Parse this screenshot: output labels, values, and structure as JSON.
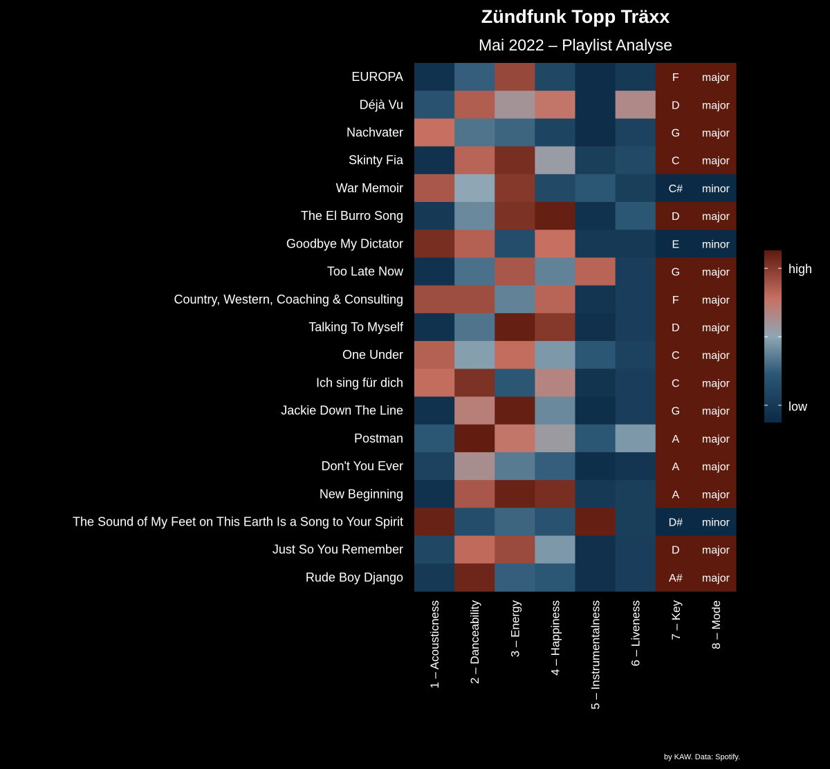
{
  "chart_data": {
    "type": "heatmap",
    "title": "Zündfunk Topp Träxx",
    "subtitle": "Mai 2022 – Playlist Analyse",
    "caption": "by KAW. Data: Spotify.",
    "columns": [
      "1 – Acousticness",
      "2 – Danceability",
      "3 – Energy",
      "4 – Happiness",
      "5 – Instrumentalness",
      "6 – Liveness",
      "7 – Key",
      "8 – Mode"
    ],
    "rows": [
      "EUROPA",
      "Déjà Vu",
      "Nachvater",
      "Skinty Fia",
      "War Memoir",
      "The El Burro Song",
      "Goodbye My Dictator",
      "Too Late Now",
      "Country, Western, Coaching & Consulting",
      "Talking To Myself",
      "One Under",
      "Ich sing für dich",
      "Jackie Down The Line",
      "Postman",
      "Don't You Ever",
      "New Beginning",
      "The Sound of My Feet on This Earth Is a Song to Your Spirit",
      "Just So You Remember",
      "Rude Boy Django"
    ],
    "scale": {
      "min": 0,
      "max": 1,
      "low_label": "low",
      "high_label": "high"
    },
    "values": [
      [
        0.05,
        0.3,
        0.85,
        0.18,
        0.02,
        0.1,
        1.0,
        1.0
      ],
      [
        0.25,
        0.78,
        0.58,
        0.7,
        0.02,
        0.62,
        1.0,
        1.0
      ],
      [
        0.72,
        0.36,
        0.32,
        0.16,
        0.02,
        0.15,
        1.0,
        1.0
      ],
      [
        0.05,
        0.76,
        0.93,
        0.54,
        0.13,
        0.2,
        1.0,
        1.0
      ],
      [
        0.8,
        0.5,
        0.9,
        0.2,
        0.28,
        0.13,
        0.0,
        0.0
      ],
      [
        0.1,
        0.42,
        0.92,
        0.98,
        0.05,
        0.28,
        1.0,
        1.0
      ],
      [
        0.93,
        0.77,
        0.22,
        0.72,
        0.1,
        0.1,
        0.0,
        0.0
      ],
      [
        0.05,
        0.35,
        0.8,
        0.4,
        0.76,
        0.12,
        1.0,
        1.0
      ],
      [
        0.83,
        0.83,
        0.4,
        0.76,
        0.07,
        0.12,
        1.0,
        1.0
      ],
      [
        0.05,
        0.36,
        0.98,
        0.9,
        0.04,
        0.12,
        1.0,
        1.0
      ],
      [
        0.77,
        0.48,
        0.73,
        0.46,
        0.28,
        0.15,
        1.0,
        1.0
      ],
      [
        0.73,
        0.92,
        0.28,
        0.64,
        0.06,
        0.12,
        1.0,
        1.0
      ],
      [
        0.05,
        0.66,
        0.98,
        0.42,
        0.03,
        0.12,
        1.0,
        1.0
      ],
      [
        0.28,
        0.99,
        0.7,
        0.55,
        0.28,
        0.46,
        1.0,
        1.0
      ],
      [
        0.15,
        0.6,
        0.38,
        0.3,
        0.03,
        0.07,
        1.0,
        1.0
      ],
      [
        0.05,
        0.8,
        0.97,
        0.93,
        0.1,
        0.13,
        1.0,
        1.0
      ],
      [
        0.97,
        0.22,
        0.32,
        0.25,
        0.98,
        0.13,
        0.0,
        0.0
      ],
      [
        0.18,
        0.74,
        0.84,
        0.46,
        0.04,
        0.12,
        1.0,
        1.0
      ],
      [
        0.1,
        0.96,
        0.3,
        0.28,
        0.04,
        0.12,
        1.0,
        1.0
      ]
    ],
    "keys": [
      "F",
      "D",
      "G",
      "C",
      "C#",
      "D",
      "E",
      "G",
      "F",
      "D",
      "C",
      "C",
      "G",
      "A",
      "A",
      "A",
      "D#",
      "D",
      "A#"
    ],
    "modes": [
      "major",
      "major",
      "major",
      "major",
      "minor",
      "major",
      "minor",
      "major",
      "major",
      "major",
      "major",
      "major",
      "major",
      "major",
      "major",
      "major",
      "minor",
      "major",
      "major"
    ],
    "colors": {
      "background": "#000000",
      "low": "#0b2a45",
      "mid_low": "#2b5775",
      "mid": "#8fa6b4",
      "mid_high": "#c77062",
      "high": "#5e1a0d"
    }
  }
}
